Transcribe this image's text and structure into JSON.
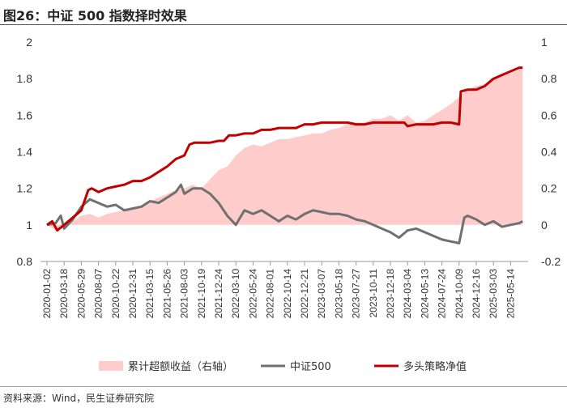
{
  "title": "图26：中证 500 指数择时效果",
  "source": "资料来源：Wind，民生证券研究院",
  "chart_data": {
    "type": "line",
    "x_ticks": [
      "2020-01-02",
      "2020-03-18",
      "2020-05-29",
      "2020-08-07",
      "2020-10-22",
      "2020-12-31",
      "2021-03-15",
      "2021-05-26",
      "2021-08-03",
      "2021-10-19",
      "2021-12-24",
      "2022-03-10",
      "2022-05-24",
      "2022-08-01",
      "2022-10-14",
      "2022-12-21",
      "2023-03-07",
      "2023-05-18",
      "2023-07-27",
      "2023-10-11",
      "2023-12-18",
      "2024-03-04",
      "2024-05-13",
      "2024-07-24",
      "2024-10-09",
      "2024-12-16",
      "2025-03-03",
      "2025-05-14"
    ],
    "y_left": {
      "ylim": [
        0.8,
        2.0
      ],
      "ticks": [
        "0.8",
        "1",
        "1.2",
        "1.4",
        "1.6",
        "1.8",
        "2"
      ]
    },
    "y_right": {
      "ylim": [
        -0.2,
        1.0
      ],
      "ticks": [
        "-0.2",
        "0",
        "0.2",
        "0.4",
        "0.6",
        "0.8",
        "1"
      ]
    },
    "series": [
      {
        "name": "累计超额收益（右轴）",
        "kind": "area",
        "axis": "right",
        "color": "#ffcccc",
        "points": [
          [
            0,
            0.0
          ],
          [
            0.5,
            -0.03
          ],
          [
            1,
            0.0
          ],
          [
            1.5,
            0.02
          ],
          [
            2,
            0.05
          ],
          [
            2.5,
            0.06
          ],
          [
            3,
            0.04
          ],
          [
            3.5,
            0.06
          ],
          [
            4,
            0.07
          ],
          [
            4.5,
            0.08
          ],
          [
            5,
            0.09
          ],
          [
            5.5,
            0.1
          ],
          [
            6,
            0.13
          ],
          [
            6.5,
            0.15
          ],
          [
            7,
            0.17
          ],
          [
            7.5,
            0.19
          ],
          [
            8,
            0.2
          ],
          [
            8.5,
            0.22
          ],
          [
            9,
            0.2
          ],
          [
            9.5,
            0.25
          ],
          [
            10,
            0.3
          ],
          [
            10.5,
            0.32
          ],
          [
            11,
            0.38
          ],
          [
            11.5,
            0.42
          ],
          [
            12,
            0.44
          ],
          [
            12.5,
            0.43
          ],
          [
            13,
            0.45
          ],
          [
            13.5,
            0.47
          ],
          [
            14,
            0.47
          ],
          [
            14.5,
            0.48
          ],
          [
            15,
            0.49
          ],
          [
            15.5,
            0.5
          ],
          [
            16,
            0.5
          ],
          [
            16.5,
            0.52
          ],
          [
            17,
            0.53
          ],
          [
            17.5,
            0.55
          ],
          [
            18,
            0.56
          ],
          [
            18.5,
            0.56
          ],
          [
            19,
            0.58
          ],
          [
            19.5,
            0.58
          ],
          [
            20,
            0.6
          ],
          [
            20.5,
            0.57
          ],
          [
            21,
            0.6
          ],
          [
            21.5,
            0.56
          ],
          [
            22,
            0.57
          ],
          [
            22.5,
            0.6
          ],
          [
            23,
            0.63
          ],
          [
            23.5,
            0.66
          ],
          [
            24,
            0.7
          ],
          [
            24.5,
            0.74
          ],
          [
            25,
            0.76
          ],
          [
            25.5,
            0.77
          ],
          [
            26,
            0.8
          ],
          [
            26.5,
            0.82
          ],
          [
            27,
            0.83
          ],
          [
            27.5,
            0.85
          ],
          [
            27.7,
            0.86
          ]
        ]
      },
      {
        "name": "中证500",
        "kind": "line",
        "axis": "left",
        "color": "#707070",
        "points": [
          [
            0,
            1.0
          ],
          [
            0.5,
            1.01
          ],
          [
            0.8,
            1.05
          ],
          [
            1,
            0.98
          ],
          [
            1.5,
            1.03
          ],
          [
            2,
            1.1
          ],
          [
            2.5,
            1.14
          ],
          [
            3,
            1.12
          ],
          [
            3.5,
            1.1
          ],
          [
            4,
            1.11
          ],
          [
            4.5,
            1.08
          ],
          [
            5,
            1.09
          ],
          [
            5.5,
            1.1
          ],
          [
            6,
            1.13
          ],
          [
            6.5,
            1.12
          ],
          [
            7,
            1.15
          ],
          [
            7.5,
            1.18
          ],
          [
            7.8,
            1.22
          ],
          [
            8,
            1.17
          ],
          [
            8.5,
            1.2
          ],
          [
            9,
            1.2
          ],
          [
            9.5,
            1.17
          ],
          [
            10,
            1.12
          ],
          [
            10.5,
            1.05
          ],
          [
            11,
            1.0
          ],
          [
            11.5,
            1.08
          ],
          [
            12,
            1.06
          ],
          [
            12.5,
            1.08
          ],
          [
            13,
            1.05
          ],
          [
            13.5,
            1.02
          ],
          [
            14,
            1.05
          ],
          [
            14.5,
            1.03
          ],
          [
            15,
            1.06
          ],
          [
            15.5,
            1.08
          ],
          [
            16,
            1.07
          ],
          [
            16.5,
            1.06
          ],
          [
            17,
            1.06
          ],
          [
            17.5,
            1.05
          ],
          [
            18,
            1.03
          ],
          [
            18.5,
            1.02
          ],
          [
            19,
            1.0
          ],
          [
            19.5,
            0.98
          ],
          [
            20,
            0.96
          ],
          [
            20.5,
            0.93
          ],
          [
            21,
            0.97
          ],
          [
            21.5,
            0.98
          ],
          [
            22,
            0.96
          ],
          [
            22.5,
            0.94
          ],
          [
            23,
            0.92
          ],
          [
            23.5,
            0.91
          ],
          [
            24,
            0.9
          ],
          [
            24.3,
            1.04
          ],
          [
            24.5,
            1.05
          ],
          [
            25,
            1.03
          ],
          [
            25.5,
            1.0
          ],
          [
            26,
            1.02
          ],
          [
            26.5,
            0.99
          ],
          [
            27,
            1.0
          ],
          [
            27.5,
            1.01
          ],
          [
            27.7,
            1.02
          ]
        ]
      },
      {
        "name": "多头策略净值",
        "kind": "line",
        "axis": "left",
        "color": "#c00000",
        "points": [
          [
            0,
            1.0
          ],
          [
            0.3,
            1.02
          ],
          [
            0.6,
            0.97
          ],
          [
            1,
            1.0
          ],
          [
            1.5,
            1.04
          ],
          [
            2,
            1.08
          ],
          [
            2.4,
            1.19
          ],
          [
            2.6,
            1.2
          ],
          [
            3,
            1.18
          ],
          [
            3.5,
            1.2
          ],
          [
            4,
            1.21
          ],
          [
            4.5,
            1.22
          ],
          [
            5,
            1.24
          ],
          [
            5.5,
            1.24
          ],
          [
            6,
            1.26
          ],
          [
            6.5,
            1.29
          ],
          [
            7,
            1.32
          ],
          [
            7.5,
            1.36
          ],
          [
            8,
            1.38
          ],
          [
            8.3,
            1.44
          ],
          [
            8.6,
            1.45
          ],
          [
            9,
            1.45
          ],
          [
            9.5,
            1.45
          ],
          [
            10,
            1.46
          ],
          [
            10.3,
            1.46
          ],
          [
            10.6,
            1.49
          ],
          [
            11,
            1.49
          ],
          [
            11.5,
            1.5
          ],
          [
            12,
            1.5
          ],
          [
            12.5,
            1.52
          ],
          [
            13,
            1.52
          ],
          [
            13.5,
            1.53
          ],
          [
            14,
            1.53
          ],
          [
            14.5,
            1.53
          ],
          [
            15,
            1.55
          ],
          [
            15.5,
            1.55
          ],
          [
            16,
            1.56
          ],
          [
            16.5,
            1.56
          ],
          [
            17,
            1.56
          ],
          [
            17.5,
            1.56
          ],
          [
            18,
            1.55
          ],
          [
            18.5,
            1.55
          ],
          [
            19,
            1.56
          ],
          [
            19.5,
            1.56
          ],
          [
            20,
            1.56
          ],
          [
            20.5,
            1.56
          ],
          [
            20.8,
            1.56
          ],
          [
            21,
            1.54
          ],
          [
            21.5,
            1.55
          ],
          [
            22,
            1.55
          ],
          [
            22.5,
            1.55
          ],
          [
            23,
            1.56
          ],
          [
            23.5,
            1.56
          ],
          [
            24,
            1.55
          ],
          [
            24.1,
            1.73
          ],
          [
            24.5,
            1.74
          ],
          [
            25,
            1.74
          ],
          [
            25.5,
            1.76
          ],
          [
            26,
            1.8
          ],
          [
            26.5,
            1.82
          ],
          [
            27,
            1.84
          ],
          [
            27.5,
            1.86
          ],
          [
            27.7,
            1.86
          ]
        ]
      }
    ],
    "legend": [
      "累计超额收益（右轴）",
      "中证500",
      "多头策略净值"
    ],
    "legend_position": "bottom"
  }
}
